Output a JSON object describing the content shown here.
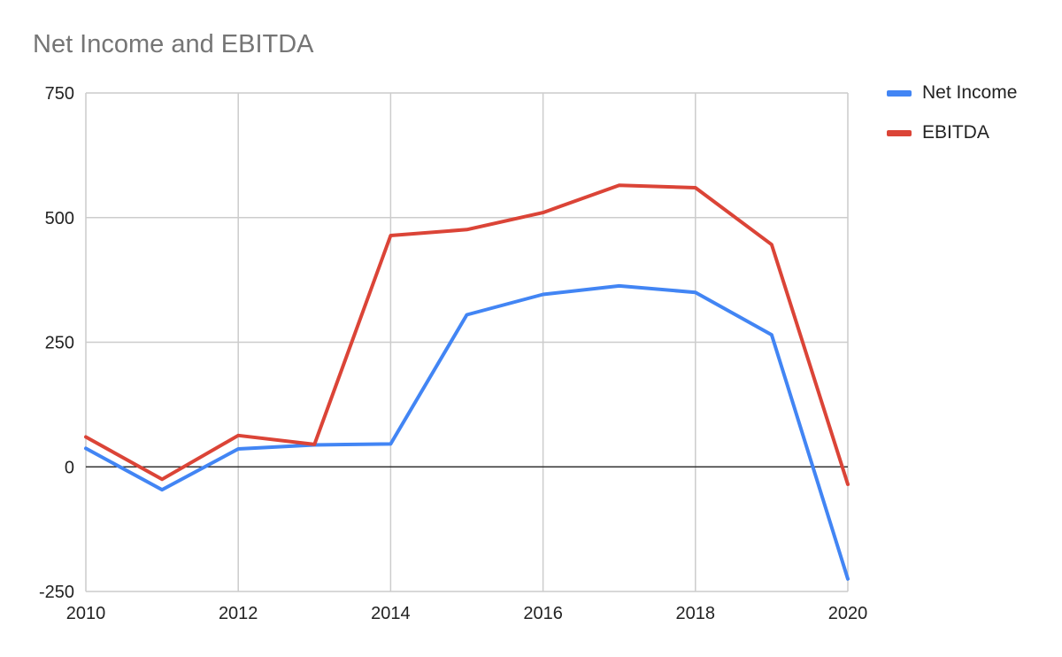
{
  "chart_data": {
    "type": "line",
    "title": "Net Income and EBITDA",
    "xlabel": "",
    "ylabel": "",
    "x": [
      2010,
      2011,
      2012,
      2013,
      2014,
      2015,
      2016,
      2017,
      2018,
      2019,
      2020
    ],
    "xticks": [
      "2010",
      "2012",
      "2014",
      "2016",
      "2018",
      "2020"
    ],
    "xtick_values": [
      2010,
      2012,
      2014,
      2016,
      2018,
      2020
    ],
    "yticks": [
      "750",
      "500",
      "250",
      "0",
      "-250"
    ],
    "ytick_values": [
      750,
      500,
      250,
      0,
      -250
    ],
    "xlim": [
      2010,
      2020
    ],
    "ylim": [
      -250,
      750
    ],
    "grid": true,
    "legend_position": "right",
    "series": [
      {
        "name": "Net Income",
        "color": "#4285f4",
        "values": [
          37,
          -46,
          36,
          44,
          46,
          305,
          346,
          363,
          350,
          265,
          -225
        ]
      },
      {
        "name": "EBITDA",
        "color": "#db4437",
        "values": [
          60,
          -25,
          63,
          45,
          464,
          476,
          510,
          565,
          560,
          446,
          -35
        ]
      }
    ]
  }
}
